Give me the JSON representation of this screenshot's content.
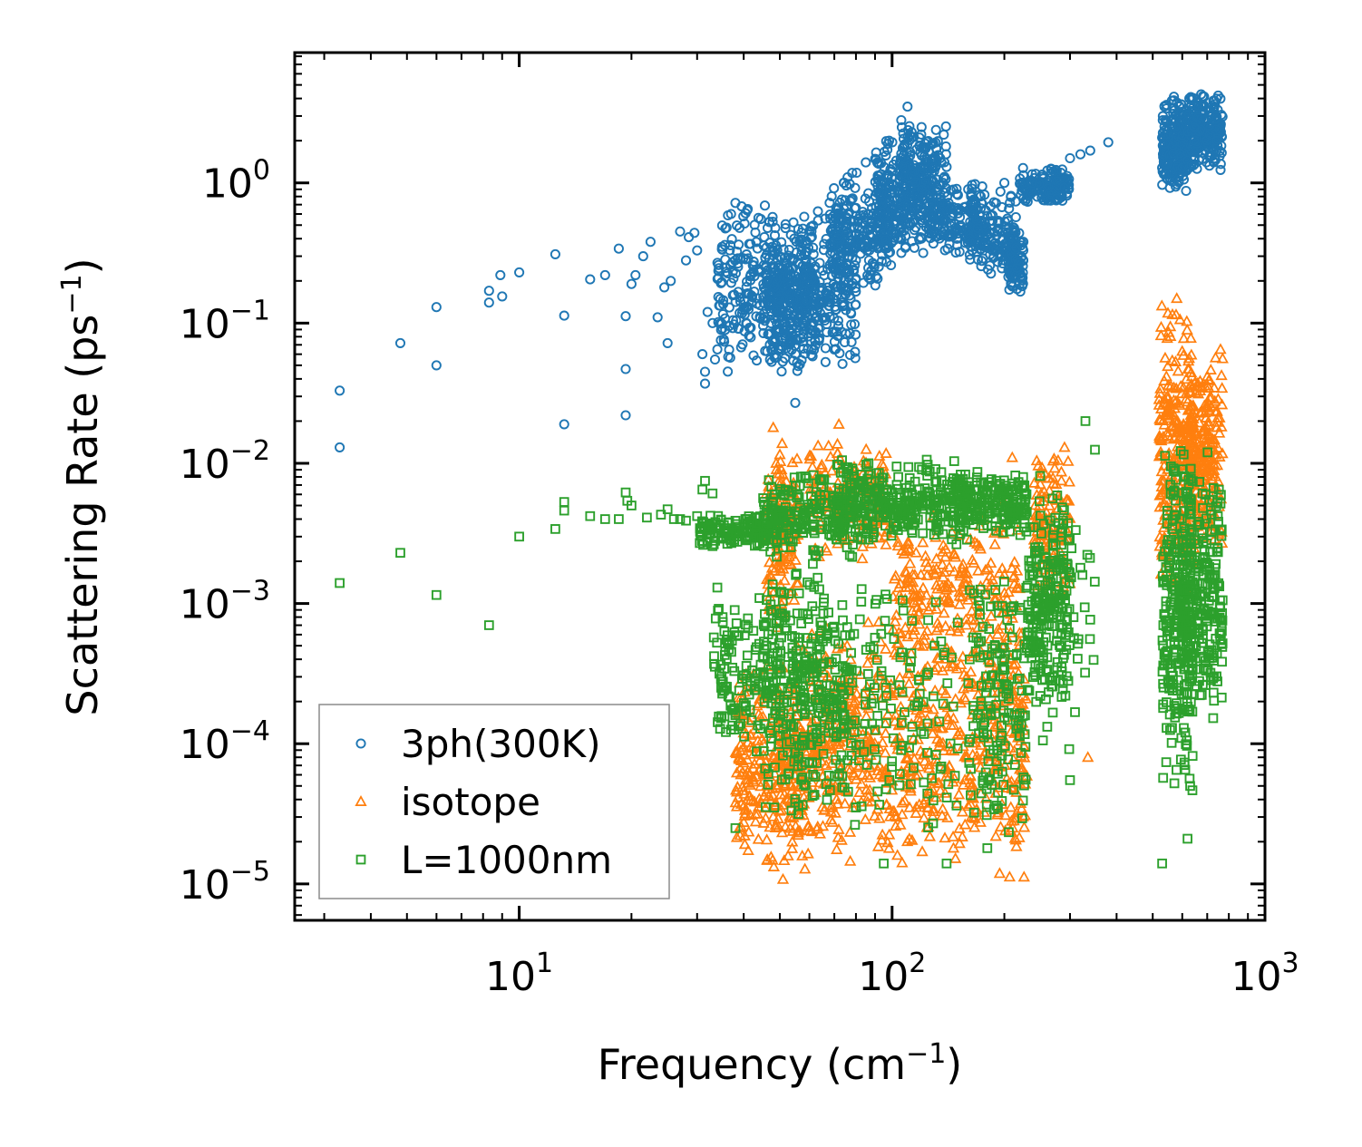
{
  "chart_data": {
    "type": "scatter",
    "title": "",
    "xlabel": {
      "base": "Frequency (cm",
      "sup": "−1",
      "tail": ")"
    },
    "ylabel": {
      "base": "Scattering Rate (ps",
      "sup": "−1",
      "tail": ")"
    },
    "xscale": "log",
    "yscale": "log",
    "xlim": [
      2.5,
      1000
    ],
    "ylim": [
      5.5e-06,
      8.5
    ],
    "xticks": [
      {
        "value": 10,
        "base": "10",
        "exp": "1"
      },
      {
        "value": 100,
        "base": "10",
        "exp": "2"
      },
      {
        "value": 1000,
        "base": "10",
        "exp": "3"
      }
    ],
    "yticks": [
      {
        "value": 1e-05,
        "base": "10",
        "exp": "−5"
      },
      {
        "value": 0.0001,
        "base": "10",
        "exp": "−4"
      },
      {
        "value": 0.001,
        "base": "10",
        "exp": "−3"
      },
      {
        "value": 0.01,
        "base": "10",
        "exp": "−2"
      },
      {
        "value": 0.1,
        "base": "10",
        "exp": "−1"
      },
      {
        "value": 1,
        "base": "10",
        "exp": "0"
      }
    ],
    "legend_position": "lower-left",
    "series": [
      {
        "name": "3ph(300K)",
        "marker": "circle",
        "color": "#1f77b4",
        "points": [
          [
            3.3,
            0.033
          ],
          [
            3.3,
            0.013
          ],
          [
            4.8,
            0.072
          ],
          [
            6.0,
            0.13
          ],
          [
            6.0,
            0.05
          ],
          [
            8.3,
            0.17
          ],
          [
            8.3,
            0.14
          ],
          [
            8.9,
            0.22
          ],
          [
            9.0,
            0.155
          ],
          [
            10.0,
            0.23
          ],
          [
            12.5,
            0.31
          ],
          [
            13.2,
            0.113
          ],
          [
            13.2,
            0.019
          ],
          [
            15.5,
            0.205
          ],
          [
            17.0,
            0.22
          ],
          [
            18.5,
            0.34
          ],
          [
            19.3,
            0.112
          ],
          [
            19.3,
            0.047
          ],
          [
            19.3,
            0.022
          ],
          [
            20.0,
            0.19
          ],
          [
            20.5,
            0.22
          ],
          [
            21.5,
            0.3
          ],
          [
            22.5,
            0.38
          ],
          [
            23.5,
            0.11
          ],
          [
            24.5,
            0.18
          ],
          [
            25.0,
            0.072
          ],
          [
            25.5,
            0.2
          ],
          [
            27.0,
            0.45
          ],
          [
            28.0,
            0.28
          ],
          [
            28.5,
            0.41
          ],
          [
            29.5,
            0.44
          ],
          [
            30.0,
            0.33
          ],
          [
            31.0,
            0.06
          ],
          [
            31.5,
            0.037
          ],
          [
            31.5,
            0.045
          ],
          [
            32.0,
            0.12
          ],
          [
            33.0,
            0.1
          ],
          [
            33.5,
            0.055
          ],
          [
            34.0,
            0.065
          ],
          [
            35.0,
            0.35
          ],
          [
            36.0,
            0.48
          ],
          [
            37.0,
            0.6
          ],
          [
            38.0,
            0.72
          ],
          [
            39.5,
            0.68
          ],
          [
            41.0,
            0.65
          ],
          [
            55.0,
            0.027
          ],
          [
            59.0,
            0.12
          ],
          [
            75.0,
            0.33
          ],
          [
            85.0,
            1.4
          ],
          [
            95.0,
            1.0
          ],
          [
            110.0,
            3.5
          ],
          [
            120.0,
            2.5
          ],
          [
            140.0,
            1.3
          ],
          [
            160.0,
            0.9
          ],
          [
            200.0,
            1.0
          ],
          [
            250.0,
            1.0
          ],
          [
            300.0,
            1.5
          ],
          [
            320.0,
            1.6
          ],
          [
            340.0,
            1.7
          ],
          [
            380.0,
            1.95
          ]
        ],
        "clusters": [
          {
            "x": [
              34,
              58
            ],
            "y": [
              0.04,
              0.72
            ],
            "n": 260
          },
          {
            "x": [
              45,
              62
            ],
            "y": [
              0.04,
              0.6
            ],
            "n": 260
          },
          {
            "x": [
              58,
              80
            ],
            "y": [
              0.04,
              0.7
            ],
            "n": 200
          },
          {
            "x": [
              68,
              100
            ],
            "y": [
              0.15,
              1.3
            ],
            "n": 240
          },
          {
            "x": [
              90,
              130
            ],
            "y": [
              0.3,
              2.2
            ],
            "n": 240
          },
          {
            "x": [
              105,
              140
            ],
            "y": [
              0.4,
              3.0
            ],
            "n": 170
          },
          {
            "x": [
              125,
              175
            ],
            "y": [
              0.3,
              1.0
            ],
            "n": 150
          },
          {
            "x": [
              160,
              215
            ],
            "y": [
              0.18,
              1.0
            ],
            "n": 150
          },
          {
            "x": [
              205,
              225
            ],
            "y": [
              0.15,
              0.45
            ],
            "n": 80
          },
          {
            "x": [
              220,
              300
            ],
            "y": [
              0.7,
              1.3
            ],
            "n": 150
          },
          {
            "x": [
              530,
              620
            ],
            "y": [
              0.85,
              4.2
            ],
            "n": 260
          },
          {
            "x": [
              620,
              770
            ],
            "y": [
              1.2,
              4.5
            ],
            "n": 220
          }
        ]
      },
      {
        "name": "isotope",
        "marker": "triangle",
        "color": "#ff7f0e",
        "points": [
          [
            48.0,
            0.018
          ],
          [
            72.0,
            0.019
          ],
          [
            290.0,
            0.013
          ],
          [
            335.0,
            8e-05
          ],
          [
            210.0,
            0.011
          ],
          [
            580.0,
            0.15
          ],
          [
            760.0,
            0.065
          ]
        ],
        "clusters": [
          {
            "x": [
              38,
              58
            ],
            "y": [
              1e-05,
              0.0004
            ],
            "n": 300
          },
          {
            "x": [
              46,
              56
            ],
            "y": [
              0.0005,
              0.017
            ],
            "n": 140
          },
          {
            "x": [
              55,
              80
            ],
            "y": [
              1.2e-05,
              0.0008
            ],
            "n": 220
          },
          {
            "x": [
              60,
              100
            ],
            "y": [
              0.002,
              0.015
            ],
            "n": 170
          },
          {
            "x": [
              80,
              160
            ],
            "y": [
              1e-05,
              0.0009
            ],
            "n": 320
          },
          {
            "x": [
              100,
              220
            ],
            "y": [
              0.0003,
              0.006
            ],
            "n": 220
          },
          {
            "x": [
              160,
              230
            ],
            "y": [
              1e-05,
              0.001
            ],
            "n": 200
          },
          {
            "x": [
              240,
              300
            ],
            "y": [
              0.001,
              0.013
            ],
            "n": 120
          },
          {
            "x": [
              520,
              640
            ],
            "y": [
              0.001,
              0.15
            ],
            "n": 260
          },
          {
            "x": [
              620,
              770
            ],
            "y": [
              0.002,
              0.065
            ],
            "n": 240
          }
        ]
      },
      {
        "name": "L=1000nm",
        "marker": "square",
        "color": "#2ca02c",
        "points": [
          [
            3.3,
            0.0014
          ],
          [
            4.8,
            0.0023
          ],
          [
            6.0,
            0.00115
          ],
          [
            8.3,
            0.0007
          ],
          [
            10.0,
            0.003
          ],
          [
            12.5,
            0.0034
          ],
          [
            13.2,
            0.0046
          ],
          [
            13.2,
            0.0053
          ],
          [
            15.5,
            0.0042
          ],
          [
            17.0,
            0.004
          ],
          [
            18.5,
            0.004
          ],
          [
            19.3,
            0.0062
          ],
          [
            19.5,
            0.0054
          ],
          [
            20.0,
            0.005
          ],
          [
            22.0,
            0.0041
          ],
          [
            24.0,
            0.0043
          ],
          [
            26.0,
            0.004
          ],
          [
            28.0,
            0.0039
          ],
          [
            30.0,
            0.0042
          ],
          [
            30.5,
            0.0027
          ],
          [
            31.0,
            0.0065
          ],
          [
            31.5,
            0.0075
          ],
          [
            33.0,
            0.0061
          ],
          [
            25.0,
            0.0047
          ],
          [
            27.0,
            0.004
          ],
          [
            34.0,
            0.0013
          ],
          [
            35.0,
            0.0029
          ],
          [
            36.0,
            0.00055
          ],
          [
            38.0,
            0.00016
          ],
          [
            38.0,
            2.5e-05
          ],
          [
            95.0,
            1.4e-05
          ],
          [
            140.0,
            1.4e-05
          ],
          [
            180.0,
            1.8e-05
          ],
          [
            330.0,
            0.02
          ],
          [
            350.0,
            0.0125
          ],
          [
            300.0,
            5.5e-05
          ],
          [
            530.0,
            1.4e-05
          ],
          [
            620.0,
            2.1e-05
          ],
          [
            630.0,
            5e-05
          ],
          [
            730.0,
            0.0003
          ]
        ],
        "clusters": [
          {
            "x": [
              30,
              50
            ],
            "y": [
              0.0025,
              0.0045
            ],
            "n": 150
          },
          {
            "x": [
              33,
              48
            ],
            "y": [
              8e-05,
              0.0014
            ],
            "n": 120
          },
          {
            "x": [
              45,
              75
            ],
            "y": [
              3e-05,
              0.0025
            ],
            "n": 320
          },
          {
            "x": [
              45,
              80
            ],
            "y": [
              0.002,
              0.009
            ],
            "n": 200
          },
          {
            "x": [
              70,
              160
            ],
            "y": [
              0.0025,
              0.011
            ],
            "n": 320
          },
          {
            "x": [
              70,
              150
            ],
            "y": [
              2e-05,
              0.0015
            ],
            "n": 150
          },
          {
            "x": [
              150,
              230
            ],
            "y": [
              0.003,
              0.009
            ],
            "n": 200
          },
          {
            "x": [
              160,
              230
            ],
            "y": [
              2e-05,
              0.002
            ],
            "n": 160
          },
          {
            "x": [
              230,
              300
            ],
            "y": [
              0.00015,
              0.006
            ],
            "n": 200
          },
          {
            "x": [
              230,
              350
            ],
            "y": [
              5e-05,
              0.015
            ],
            "n": 60
          },
          {
            "x": [
              530,
              640
            ],
            "y": [
              4e-05,
              0.014
            ],
            "n": 280
          },
          {
            "x": [
              600,
              770
            ],
            "y": [
              0.0001,
              0.013
            ],
            "n": 240
          }
        ]
      }
    ]
  }
}
